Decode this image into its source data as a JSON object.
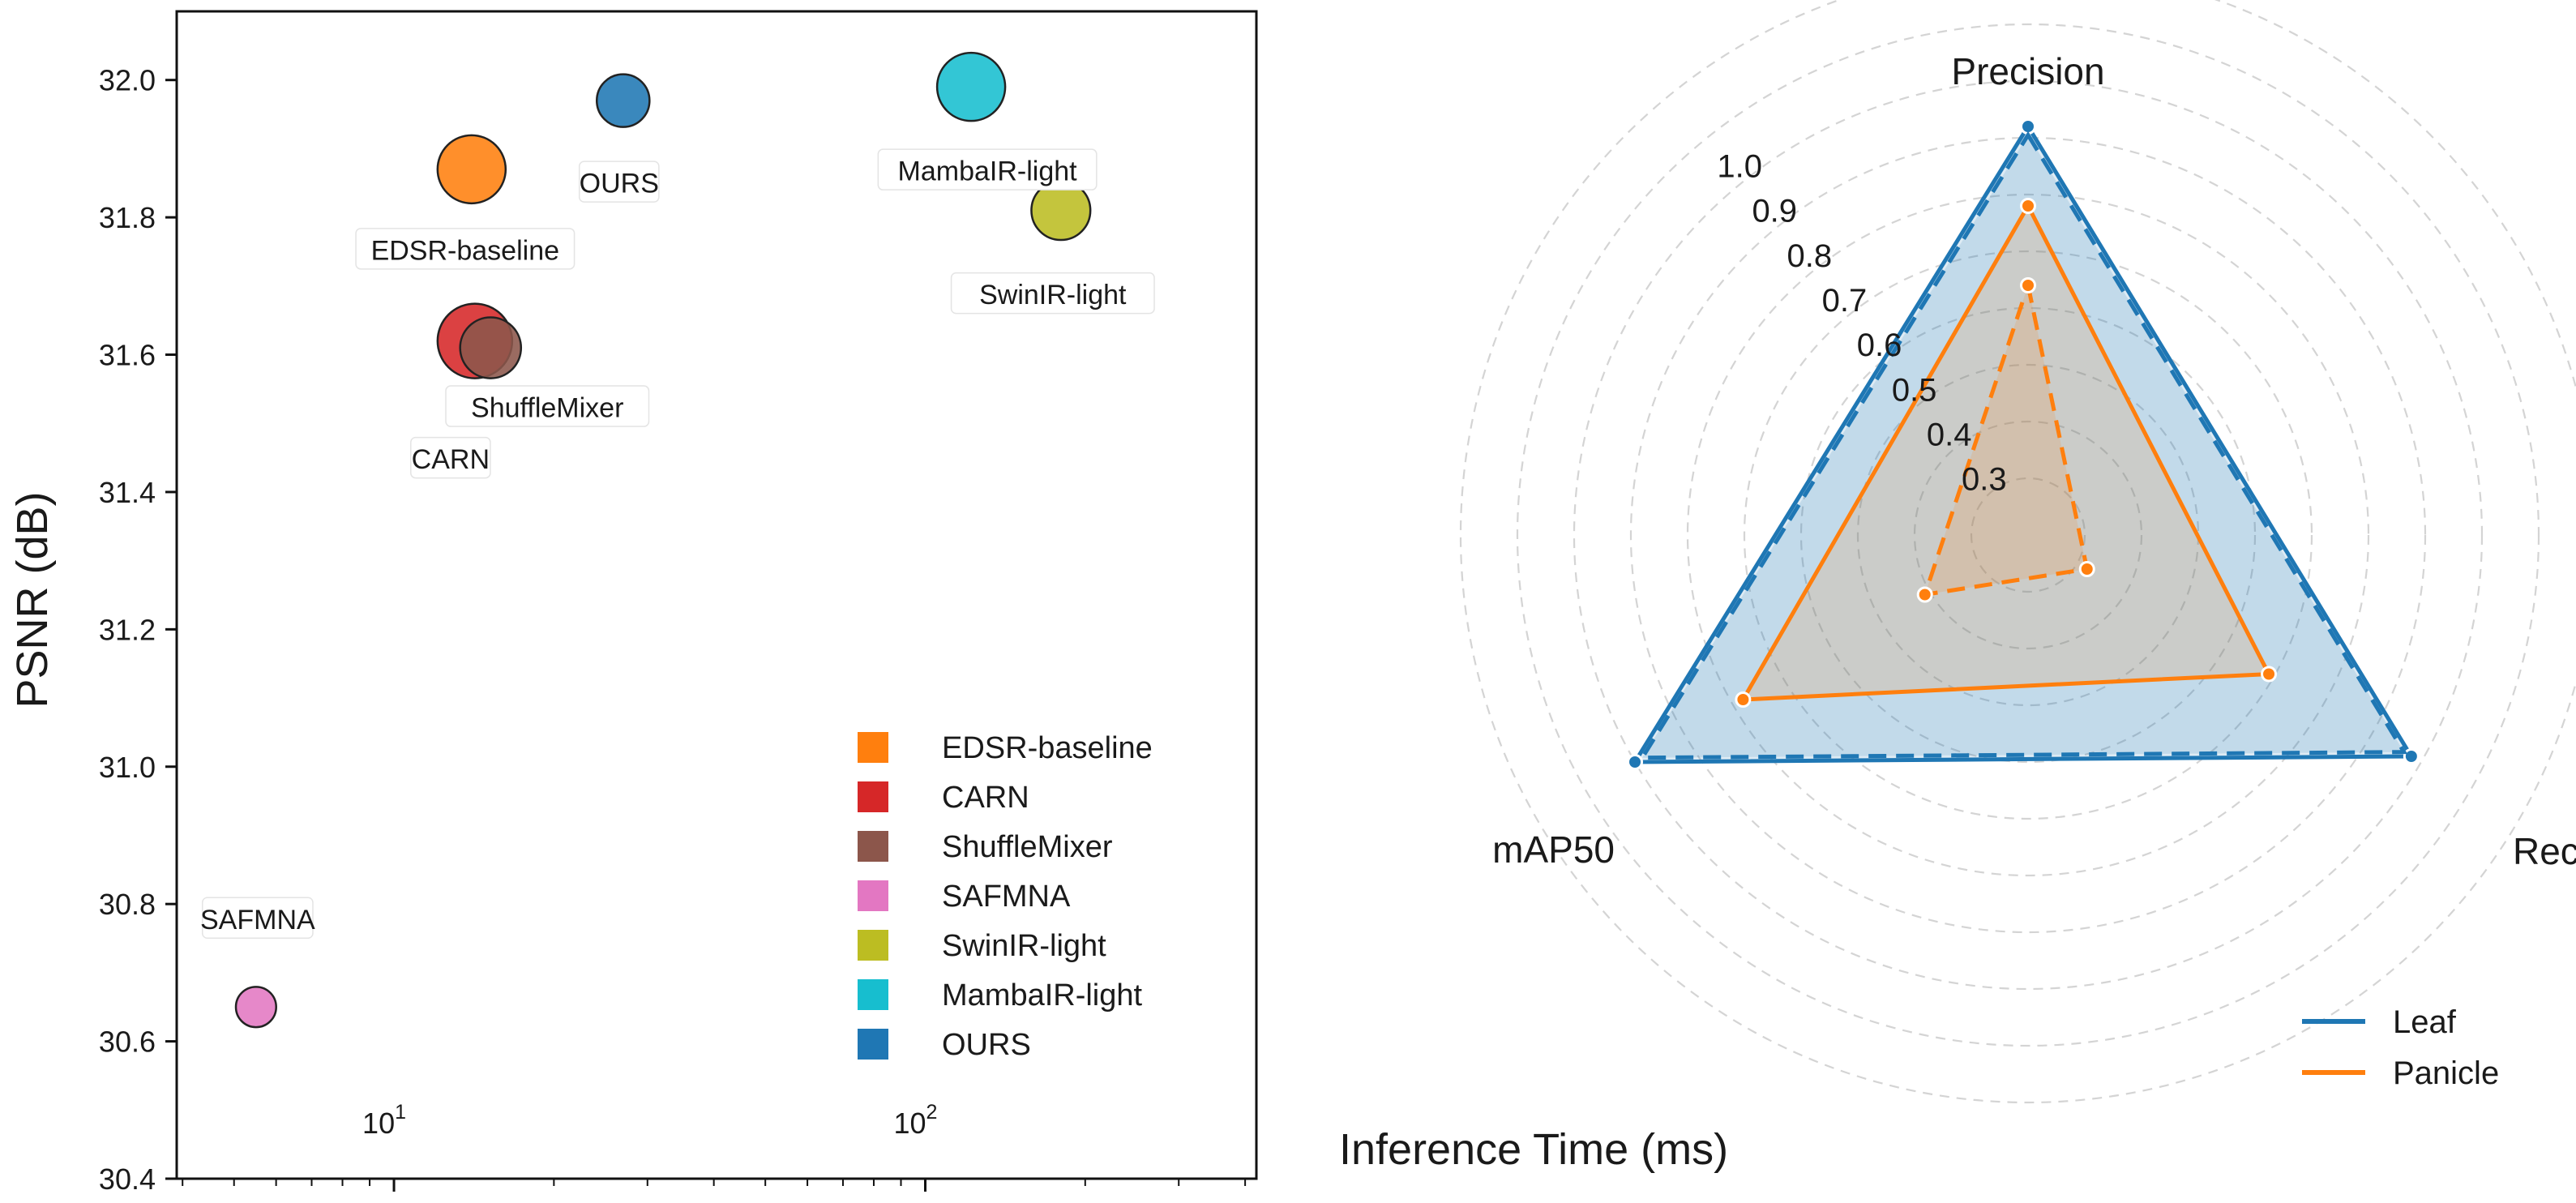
{
  "chart_data": [
    {
      "type": "scatter",
      "title": "",
      "xlabel": "Inference Time (ms)",
      "ylabel": "PSNR (dB)",
      "xscale": "log",
      "xlim": [
        3.9,
        420
      ],
      "ylim": [
        30.4,
        32.1
      ],
      "yticks": [
        "30.4",
        "30.6",
        "30.8",
        "31.0",
        "31.2",
        "31.4",
        "31.6",
        "31.8",
        "32.0"
      ],
      "xtick_labels": [
        {
          "base": "10",
          "exp": "1",
          "value": 10
        },
        {
          "base": "10",
          "exp": "2",
          "value": 100
        }
      ],
      "grid": false,
      "legend_position": "lower-right",
      "points": [
        {
          "name": "EDSR-baseline",
          "x": 14,
          "y": 31.87,
          "size": 1.0,
          "color": "#ff7f0e",
          "label": "EDSR-baseline"
        },
        {
          "name": "CARN",
          "x": 14.2,
          "y": 31.62,
          "size": 1.2,
          "color": "#d62728",
          "label": "CARN"
        },
        {
          "name": "ShuffleMixer",
          "x": 15.2,
          "y": 31.61,
          "size": 0.8,
          "color": "#8c564b",
          "label": "ShuffleMixer"
        },
        {
          "name": "SAFMNA",
          "x": 5.5,
          "y": 30.65,
          "size": 0.35,
          "color": "#e377c2",
          "label": "SAFMNA"
        },
        {
          "name": "SwinIR-light",
          "x": 180,
          "y": 31.81,
          "size": 0.75,
          "color": "#bcbd22",
          "label": "SwinIR-light"
        },
        {
          "name": "MambaIR-light",
          "x": 122,
          "y": 31.99,
          "size": 1.0,
          "color": "#17becf",
          "label": "MambaIR-light"
        },
        {
          "name": "OURS",
          "x": 27,
          "y": 31.97,
          "size": 0.6,
          "color": "#1f77b4",
          "label": "OURS"
        }
      ]
    },
    {
      "type": "radar",
      "title": "",
      "axes": [
        "Precision",
        "Recall",
        "mAP50"
      ],
      "rlim": [
        0.2,
        1.0
      ],
      "rtick_labels": [
        "0.3",
        "0.4",
        "0.5",
        "0.6",
        "0.7",
        "0.8",
        "0.9",
        "1.0"
      ],
      "rticks": [
        0.3,
        0.4,
        0.5,
        0.6,
        0.7,
        0.8,
        0.9,
        1.0
      ],
      "legend_position": "lower-right",
      "series": [
        {
          "name": "Leaf",
          "style": "solid",
          "values": [
            0.92,
            0.98,
            1.0
          ],
          "color": "#1f77b4"
        },
        {
          "name": "Leaf",
          "style": "dashed",
          "values": [
            0.905,
            0.965,
            0.985
          ],
          "color": "#1f77b4"
        },
        {
          "name": "Panicle",
          "style": "solid",
          "values": [
            0.78,
            0.69,
            0.78
          ],
          "color": "#ff7f0e"
        },
        {
          "name": "Panicle",
          "style": "dashed",
          "values": [
            0.64,
            0.32,
            0.41
          ],
          "color": "#ff7f0e"
        }
      ],
      "legend": [
        "Leaf",
        "Panicle"
      ]
    }
  ]
}
